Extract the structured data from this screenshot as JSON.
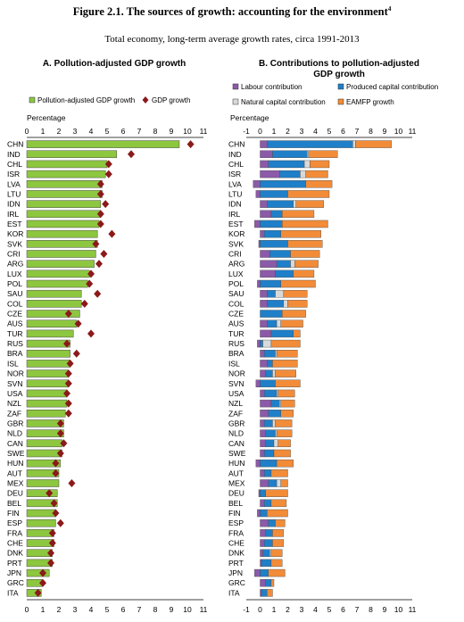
{
  "figure": {
    "title": "Figure 2.1. The sources of growth: accounting for the environment",
    "title_note": "4",
    "subtitle": "Total economy, long-term average growth rates, circa 1991-2013"
  },
  "panel_a": {
    "title": "A. Pollution-adjusted GDP growth",
    "axis_label": "Percentage",
    "legend": [
      "Pollution-adjusted GDP growth",
      "GDP growth"
    ]
  },
  "panel_b": {
    "title": "B. Contributions to pollution-adjusted GDP growth",
    "axis_label": "Percentage",
    "legend": [
      "Labour contribution",
      "Produced capital contribution",
      "Natural capital contribution",
      "EAMFP growth"
    ]
  },
  "colors": {
    "green": "#8dc63f",
    "diamond": "#8b1a1a",
    "labour": "#8b5aa8",
    "produced": "#1f7fc8",
    "natural": "#d9d9d9",
    "eamfp": "#f28c38"
  },
  "chart_data": [
    {
      "type": "bar",
      "title": "A. Pollution-adjusted GDP growth",
      "ylabel": "Percentage",
      "xlim": [
        0,
        11
      ],
      "categories": [
        "CHN",
        "IND",
        "CHL",
        "ISR",
        "LVA",
        "LTU",
        "IDN",
        "IRL",
        "EST",
        "KOR",
        "SVK",
        "CRI",
        "ARG",
        "LUX",
        "POL",
        "SAU",
        "COL",
        "CZE",
        "AUS",
        "TUR",
        "RUS",
        "BRA",
        "ISL",
        "NOR",
        "SVN",
        "USA",
        "NZL",
        "ZAF",
        "GBR",
        "NLD",
        "CAN",
        "SWE",
        "HUN",
        "AUT",
        "MEX",
        "DEU",
        "BEL",
        "FIN",
        "ESP",
        "FRA",
        "CHE",
        "DNK",
        "PRT",
        "JPN",
        "GRC",
        "ITA"
      ],
      "series": [
        {
          "name": "Pollution-adjusted GDP growth",
          "values": [
            9.5,
            5.6,
            5.0,
            4.9,
            4.7,
            4.7,
            4.6,
            4.6,
            4.5,
            4.4,
            4.4,
            4.3,
            4.2,
            3.9,
            3.8,
            3.4,
            3.4,
            3.3,
            3.1,
            2.9,
            2.7,
            2.7,
            2.7,
            2.6,
            2.6,
            2.5,
            2.5,
            2.4,
            2.3,
            2.3,
            2.2,
            2.2,
            2.1,
            2.0,
            2.0,
            1.9,
            1.9,
            1.8,
            1.8,
            1.7,
            1.7,
            1.6,
            1.6,
            1.4,
            1.0,
            0.9
          ]
        },
        {
          "name": "GDP growth",
          "values": [
            10.2,
            6.5,
            5.1,
            5.1,
            4.6,
            4.6,
            4.9,
            4.6,
            4.6,
            5.3,
            4.3,
            4.8,
            4.5,
            4.0,
            3.9,
            4.4,
            3.6,
            2.6,
            3.2,
            4.0,
            2.5,
            3.1,
            2.7,
            2.6,
            2.6,
            2.5,
            2.6,
            2.6,
            2.1,
            2.1,
            2.3,
            2.1,
            1.8,
            1.8,
            2.8,
            1.4,
            1.7,
            1.8,
            2.1,
            1.6,
            1.6,
            1.5,
            1.5,
            1.0,
            1.0,
            0.7
          ]
        }
      ]
    },
    {
      "type": "bar",
      "title": "B. Contributions to pollution-adjusted GDP growth",
      "ylabel": "Percentage",
      "xlim": [
        -1,
        11
      ],
      "stacked": true,
      "categories": [
        "CHN",
        "IND",
        "CHL",
        "ISR",
        "LVA",
        "LTU",
        "IDN",
        "IRL",
        "EST",
        "KOR",
        "SVK",
        "CRI",
        "ARG",
        "LUX",
        "POL",
        "SAU",
        "COL",
        "CZE",
        "AUS",
        "TUR",
        "RUS",
        "BRA",
        "ISL",
        "NOR",
        "SVN",
        "USA",
        "NZL",
        "ZAF",
        "GBR",
        "NLD",
        "CAN",
        "SWE",
        "HUN",
        "AUT",
        "MEX",
        "DEU",
        "BEL",
        "FIN",
        "ESP",
        "FRA",
        "CHE",
        "DNK",
        "PRT",
        "JPN",
        "GRC",
        "ITA"
      ],
      "series": [
        {
          "name": "Labour contribution",
          "values": [
            0.5,
            0.9,
            0.6,
            1.4,
            -0.5,
            -0.3,
            0.5,
            0.8,
            -0.4,
            0.3,
            -0.1,
            0.7,
            1.2,
            1.1,
            -0.2,
            0.5,
            0.5,
            0.0,
            0.5,
            0.8,
            -0.2,
            0.3,
            0.5,
            0.4,
            -0.3,
            0.3,
            0.8,
            0.6,
            0.3,
            0.4,
            0.4,
            0.3,
            -0.3,
            0.3,
            0.6,
            -0.1,
            0.3,
            -0.2,
            0.6,
            0.4,
            0.3,
            0.2,
            0.1,
            -0.4,
            0.4,
            0.1
          ]
        },
        {
          "name": "Produced capital contribution",
          "values": [
            6.2,
            2.5,
            2.6,
            1.5,
            3.3,
            2.0,
            1.9,
            0.8,
            1.6,
            1.2,
            2.0,
            1.5,
            1.0,
            1.3,
            1.5,
            0.6,
            1.2,
            1.6,
            0.7,
            1.6,
            0.2,
            0.8,
            0.4,
            0.5,
            1.1,
            0.9,
            0.6,
            0.9,
            0.6,
            0.7,
            0.6,
            0.7,
            1.2,
            0.5,
            0.6,
            0.4,
            0.5,
            0.5,
            0.5,
            0.5,
            0.6,
            0.5,
            0.7,
            0.6,
            0.4,
            0.4
          ]
        },
        {
          "name": "Natural capital contribution",
          "values": [
            0.2,
            0.1,
            0.4,
            0.4,
            0.0,
            0.0,
            0.2,
            0.0,
            0.0,
            0.0,
            0.0,
            0.0,
            0.3,
            0.0,
            0.0,
            0.6,
            0.3,
            0.0,
            0.3,
            0.0,
            0.6,
            0.1,
            0.0,
            0.2,
            0.0,
            0.1,
            0.1,
            0.0,
            0.2,
            0.1,
            0.3,
            0.0,
            0.0,
            0.0,
            0.3,
            0.0,
            0.0,
            0.0,
            0.0,
            0.0,
            0.0,
            0.1,
            0.0,
            0.0,
            0.0,
            0.0
          ]
        },
        {
          "name": "EAMFP growth",
          "values": [
            2.6,
            2.1,
            1.4,
            1.6,
            1.9,
            3.0,
            2.0,
            2.3,
            3.3,
            2.9,
            2.5,
            2.1,
            1.7,
            1.5,
            2.5,
            1.7,
            1.4,
            1.7,
            1.6,
            0.5,
            2.1,
            1.5,
            1.8,
            1.5,
            1.8,
            1.2,
            1.0,
            0.9,
            1.2,
            1.1,
            0.9,
            1.2,
            1.2,
            1.2,
            0.5,
            1.6,
            1.1,
            1.5,
            0.7,
            0.8,
            0.8,
            0.8,
            0.8,
            1.2,
            0.2,
            0.4
          ]
        }
      ]
    }
  ]
}
